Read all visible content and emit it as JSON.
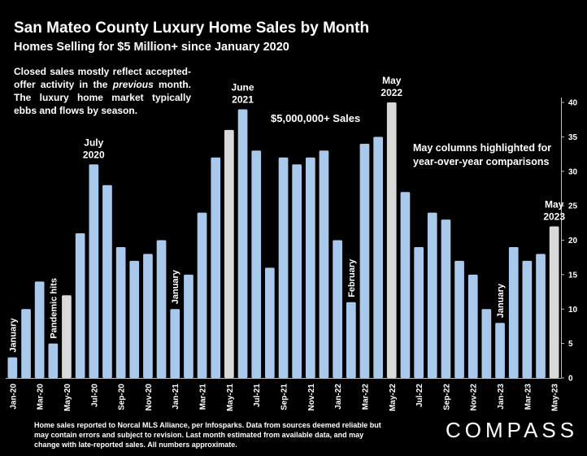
{
  "header": {
    "title": "San Mateo County Luxury Home Sales by Month",
    "subtitle": "Homes Selling for $5 Million+ since January 2020"
  },
  "note": {
    "line_before_em": "Closed sales mostly reflect accepted-offer activity in the ",
    "em": "previous",
    "line_after_em": " month. The luxury home market typically ebbs and flows by season."
  },
  "series_label": "$5,000,000+ Sales",
  "may_note": {
    "line1": "May columns highlighted for",
    "line2": "year-over-year comparisons"
  },
  "footer": "Home sales reported to Norcal MLS Alliance, per Infosparks. Data from sources deemed reliable but may contain errors and subject to revision.  Last month estimated from available data, and may change with late-reported sales. All numbers approximate.",
  "logo": "COMPASS",
  "colors": {
    "background": "#000000",
    "bar": "#a9c9ec",
    "highlight_bar": "#d9d9d9"
  },
  "chart_data": {
    "type": "bar",
    "categories": [
      "Jan-20",
      "Feb-20",
      "Mar-20",
      "Apr-20",
      "May-20",
      "Jun-20",
      "Jul-20",
      "Aug-20",
      "Sep-20",
      "Oct-20",
      "Nov-20",
      "Dec-20",
      "Jan-21",
      "Feb-21",
      "Mar-21",
      "Apr-21",
      "May-21",
      "Jun-21",
      "Jul-21",
      "Aug-21",
      "Sep-21",
      "Oct-21",
      "Nov-21",
      "Dec-21",
      "Jan-22",
      "Feb-22",
      "Mar-22",
      "Apr-22",
      "May-22",
      "Jun-22",
      "Jul-22",
      "Aug-22",
      "Sep-22",
      "Oct-22",
      "Nov-22",
      "Dec-22",
      "Jan-23",
      "Feb-23",
      "Mar-23",
      "Apr-23",
      "May-23"
    ],
    "tick_labels": [
      "Jan-20",
      "",
      "Mar-20",
      "",
      "May-20",
      "",
      "Jul-20",
      "",
      "Sep-20",
      "",
      "Nov-20",
      "",
      "Jan-21",
      "",
      "Mar-21",
      "",
      "May-21",
      "",
      "Jul-21",
      "",
      "Sep-21",
      "",
      "Nov-21",
      "",
      "Jan-22",
      "",
      "Mar-22",
      "",
      "May-22",
      "",
      "Jul-22",
      "",
      "Sep-22",
      "",
      "Nov-22",
      "",
      "Jan-23",
      "",
      "Mar-23",
      "",
      "May-23"
    ],
    "values": [
      3,
      10,
      14,
      5,
      12,
      21,
      31,
      28,
      19,
      17,
      18,
      20,
      10,
      15,
      24,
      32,
      36,
      39,
      33,
      16,
      32,
      31,
      32,
      33,
      20,
      11,
      34,
      35,
      40,
      27,
      19,
      24,
      23,
      17,
      15,
      10,
      8,
      19,
      17,
      18,
      22
    ],
    "highlighted": [
      "May-20",
      "May-21",
      "May-22",
      "May-23"
    ],
    "ylim": [
      0,
      40
    ],
    "yticks": [
      0,
      5,
      10,
      15,
      20,
      25,
      30,
      35,
      40
    ],
    "y_axis_side": "right",
    "grid": false,
    "annotations": [
      {
        "category": "Jan-20",
        "text": "January",
        "vertical": true
      },
      {
        "category": "Apr-20",
        "text": "Pandemic hits",
        "vertical": true
      },
      {
        "category": "Jul-20",
        "lines": [
          "July",
          "2020"
        ],
        "vertical": false
      },
      {
        "category": "Jan-21",
        "text": "January",
        "vertical": true
      },
      {
        "category": "Jun-21",
        "lines": [
          "June",
          "2021"
        ],
        "vertical": false
      },
      {
        "category": "Feb-22",
        "text": "February",
        "vertical": true
      },
      {
        "category": "May-22",
        "lines": [
          "May",
          "2022"
        ],
        "vertical": false
      },
      {
        "category": "Jan-23",
        "text": "January",
        "vertical": true
      },
      {
        "category": "May-23",
        "lines": [
          "May",
          "2023"
        ],
        "vertical": false
      }
    ]
  }
}
